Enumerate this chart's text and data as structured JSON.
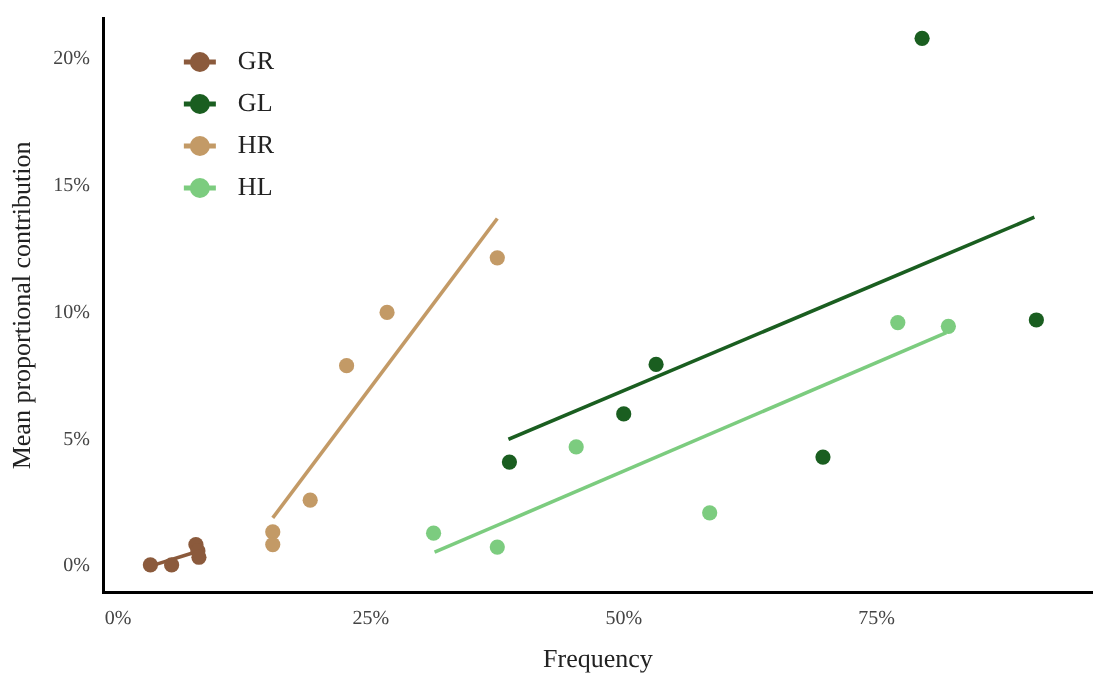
{
  "chart_data": {
    "type": "scatter",
    "xlabel": "Frequency",
    "ylabel": "Mean proportional contribution",
    "xlim": [
      -1.4,
      96.3
    ],
    "ylim": [
      -1.05,
      21.6
    ],
    "xticks": [
      {
        "value": 0,
        "label": "0%"
      },
      {
        "value": 25,
        "label": "25%"
      },
      {
        "value": 50,
        "label": "50%"
      },
      {
        "value": 75,
        "label": "75%"
      }
    ],
    "yticks": [
      {
        "value": 0,
        "label": "0%"
      },
      {
        "value": 5,
        "label": "5%"
      },
      {
        "value": 10,
        "label": "10%"
      },
      {
        "value": 15,
        "label": "15%"
      },
      {
        "value": 20,
        "label": "20%"
      }
    ],
    "grid": false,
    "legend": "top left",
    "marker": "circle",
    "series": [
      {
        "name": "GR",
        "color": "#8b5a3c",
        "x": [
          3.2,
          5.3,
          7.7,
          7.9,
          8.0
        ],
        "values": [
          0.05,
          0.05,
          0.85,
          0.6,
          0.35
        ]
      },
      {
        "name": "GL",
        "color": "#1a5e20",
        "x": [
          38.7,
          50.0,
          53.2,
          69.7,
          79.5,
          90.8
        ],
        "values": [
          4.1,
          6.0,
          7.95,
          4.3,
          20.8,
          9.7
        ]
      },
      {
        "name": "HR",
        "color": "#c39a66",
        "x": [
          15.3,
          15.3,
          19.0,
          22.6,
          26.6,
          37.5
        ],
        "values": [
          1.35,
          0.85,
          2.6,
          7.9,
          10.0,
          12.15
        ]
      },
      {
        "name": "HL",
        "color": "#7ccc7f",
        "x": [
          31.2,
          37.5,
          45.3,
          58.5,
          77.1,
          82.1
        ],
        "values": [
          1.3,
          0.75,
          4.7,
          2.1,
          9.6,
          9.45
        ]
      },
      {
        "type": "line",
        "marker": "none",
        "color": "#8b5a3c",
        "x": [
          3.2,
          8.0
        ],
        "values": [
          0.0,
          0.6
        ]
      },
      {
        "type": "line",
        "marker": "none",
        "color": "#1a5e20",
        "x": [
          38.6,
          90.6
        ],
        "values": [
          5.0,
          13.75
        ]
      },
      {
        "type": "line",
        "marker": "none",
        "color": "#c39a66",
        "x": [
          15.3,
          37.5
        ],
        "values": [
          1.9,
          13.7
        ]
      },
      {
        "type": "line",
        "marker": "none",
        "color": "#7ccc7f",
        "x": [
          31.3,
          81.9
        ],
        "values": [
          0.55,
          9.2
        ]
      }
    ]
  }
}
